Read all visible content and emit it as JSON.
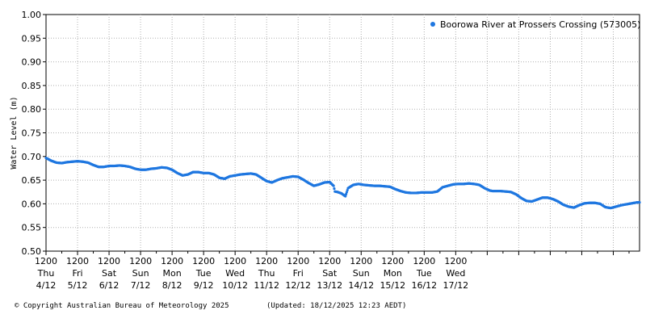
{
  "chart_data": {
    "type": "scatter",
    "ylabel": "Water Level (m)",
    "ylim": [
      0.5,
      1.0
    ],
    "yticks": [
      "0.50",
      "0.55",
      "0.60",
      "0.65",
      "0.70",
      "0.75",
      "0.80",
      "0.85",
      "0.90",
      "0.95",
      "1.00"
    ],
    "x_range_hours": [
      0,
      340
    ],
    "grid": true,
    "legend_position": "top-right",
    "series": [
      {
        "name": "Boorowa River at Prossers Crossing (573005)",
        "color": "#1f77e0",
        "points": [
          [
            0,
            0.697
          ],
          [
            4,
            0.691
          ],
          [
            8,
            0.687
          ],
          [
            12,
            0.686
          ],
          [
            16,
            0.688
          ],
          [
            20,
            0.689
          ],
          [
            24,
            0.69
          ],
          [
            28,
            0.689
          ],
          [
            32,
            0.687
          ],
          [
            36,
            0.682
          ],
          [
            40,
            0.678
          ],
          [
            44,
            0.678
          ],
          [
            48,
            0.68
          ],
          [
            52,
            0.68
          ],
          [
            56,
            0.681
          ],
          [
            60,
            0.68
          ],
          [
            64,
            0.678
          ],
          [
            68,
            0.674
          ],
          [
            72,
            0.672
          ],
          [
            76,
            0.672
          ],
          [
            80,
            0.674
          ],
          [
            84,
            0.675
          ],
          [
            88,
            0.677
          ],
          [
            92,
            0.676
          ],
          [
            96,
            0.672
          ],
          [
            100,
            0.665
          ],
          [
            104,
            0.66
          ],
          [
            108,
            0.662
          ],
          [
            112,
            0.667
          ],
          [
            116,
            0.667
          ],
          [
            120,
            0.665
          ],
          [
            124,
            0.665
          ],
          [
            128,
            0.662
          ],
          [
            132,
            0.655
          ],
          [
            136,
            0.653
          ],
          [
            140,
            0.658
          ],
          [
            144,
            0.66
          ],
          [
            148,
            0.662
          ],
          [
            152,
            0.663
          ],
          [
            156,
            0.664
          ],
          [
            160,
            0.662
          ],
          [
            164,
            0.655
          ],
          [
            168,
            0.648
          ],
          [
            172,
            0.645
          ],
          [
            176,
            0.65
          ],
          [
            180,
            0.654
          ],
          [
            184,
            0.656
          ],
          [
            188,
            0.658
          ],
          [
            192,
            0.657
          ],
          [
            196,
            0.651
          ],
          [
            200,
            0.644
          ],
          [
            204,
            0.638
          ],
          [
            208,
            0.641
          ],
          [
            212,
            0.645
          ],
          [
            216,
            0.646
          ],
          [
            219,
            0.638
          ],
          [
            220,
            0.626
          ],
          [
            222,
            0.625
          ],
          [
            225,
            0.622
          ],
          [
            228,
            0.616
          ],
          [
            230,
            0.633
          ],
          [
            234,
            0.64
          ],
          [
            238,
            0.642
          ],
          [
            242,
            0.64
          ],
          [
            246,
            0.639
          ],
          [
            250,
            0.638
          ],
          [
            254,
            0.638
          ],
          [
            258,
            0.637
          ],
          [
            262,
            0.636
          ],
          [
            266,
            0.631
          ],
          [
            270,
            0.627
          ],
          [
            274,
            0.624
          ],
          [
            278,
            0.623
          ],
          [
            282,
            0.623
          ],
          [
            286,
            0.624
          ],
          [
            290,
            0.624
          ],
          [
            294,
            0.624
          ],
          [
            298,
            0.626
          ],
          [
            302,
            0.635
          ],
          [
            306,
            0.638
          ],
          [
            310,
            0.641
          ],
          [
            314,
            0.642
          ],
          [
            318,
            0.642
          ],
          [
            322,
            0.643
          ],
          [
            326,
            0.642
          ],
          [
            330,
            0.64
          ],
          [
            334,
            0.633
          ],
          [
            338,
            0.628
          ],
          [
            340,
            0.627
          ]
        ]
      }
    ],
    "series_extra": [
      [
        342,
        0.627
      ],
      [
        346,
        0.627
      ],
      [
        350,
        0.626
      ],
      [
        354,
        0.625
      ],
      [
        358,
        0.62
      ],
      [
        362,
        0.612
      ],
      [
        366,
        0.606
      ],
      [
        370,
        0.605
      ],
      [
        374,
        0.609
      ],
      [
        378,
        0.613
      ],
      [
        382,
        0.613
      ],
      [
        386,
        0.61
      ],
      [
        390,
        0.605
      ],
      [
        394,
        0.598
      ],
      [
        398,
        0.594
      ],
      [
        402,
        0.592
      ],
      [
        406,
        0.597
      ],
      [
        410,
        0.601
      ],
      [
        414,
        0.602
      ],
      [
        418,
        0.602
      ],
      [
        422,
        0.6
      ],
      [
        426,
        0.593
      ],
      [
        430,
        0.591
      ],
      [
        434,
        0.594
      ],
      [
        438,
        0.597
      ],
      [
        442,
        0.599
      ],
      [
        446,
        0.601
      ],
      [
        450,
        0.603
      ],
      [
        452,
        0.603
      ]
    ],
    "x_labels": [
      {
        "time": "1200",
        "day": "Thu",
        "date": "4/12"
      },
      {
        "time": "1200",
        "day": "Fri",
        "date": "5/12"
      },
      {
        "time": "1200",
        "day": "Sat",
        "date": "6/12"
      },
      {
        "time": "1200",
        "day": "Sun",
        "date": "7/12"
      },
      {
        "time": "1200",
        "day": "Mon",
        "date": "8/12"
      },
      {
        "time": "1200",
        "day": "Tue",
        "date": "9/12"
      },
      {
        "time": "1200",
        "day": "Wed",
        "date": "10/12"
      },
      {
        "time": "1200",
        "day": "Thu",
        "date": "11/12"
      },
      {
        "time": "1200",
        "day": "Fri",
        "date": "12/12"
      },
      {
        "time": "1200",
        "day": "Sat",
        "date": "13/12"
      },
      {
        "time": "1200",
        "day": "Sun",
        "date": "14/12"
      },
      {
        "time": "1200",
        "day": "Mon",
        "date": "15/12"
      },
      {
        "time": "1200",
        "day": "Tue",
        "date": "16/12"
      },
      {
        "time": "1200",
        "day": "Wed",
        "date": "17/12"
      }
    ]
  },
  "footer": {
    "copyright": "© Copyright Australian Bureau of Meteorology 2025",
    "updated": "(Updated: 18/12/2025 12:23 AEDT)"
  }
}
